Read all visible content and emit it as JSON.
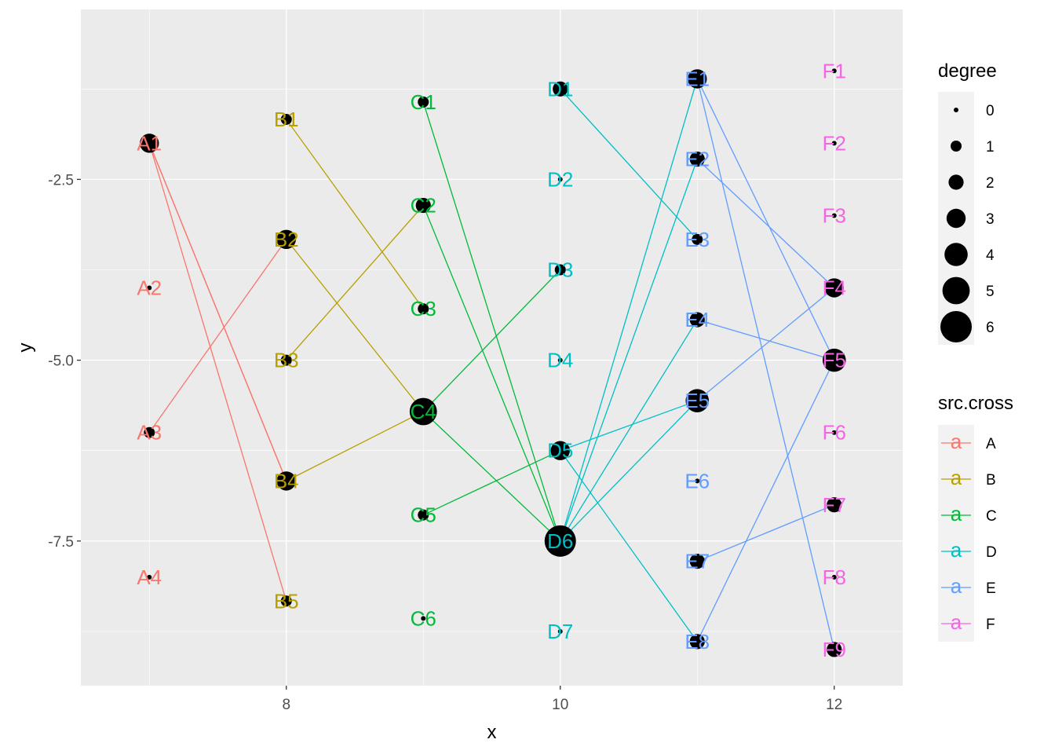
{
  "chart_data": {
    "type": "scatter",
    "xlabel": "x",
    "ylabel": "y",
    "xlim": [
      6.5,
      12.5
    ],
    "ylim": [
      -9.5,
      -0.15
    ],
    "xticks": [
      8,
      10,
      12
    ],
    "xtick_labels": [
      "8",
      "10",
      "12"
    ],
    "yticks": [
      -2.5,
      -5.0,
      -7.5
    ],
    "ytick_labels": [
      "-2.5",
      "-5.0",
      "-7.5"
    ],
    "grid": true,
    "legend_position": "right",
    "colors": {
      "A": "#F8766D",
      "B": "#B79F00",
      "C": "#00BA38",
      "D": "#00BFC4",
      "E": "#619CFF",
      "F": "#F564E3"
    },
    "legends": {
      "degree": {
        "title": "degree",
        "values": [
          0,
          1,
          2,
          3,
          4,
          5,
          6
        ],
        "labels": [
          "0",
          "1",
          "2",
          "3",
          "4",
          "5",
          "6"
        ]
      },
      "src_cross": {
        "title": "src.cross",
        "key_glyph": "a",
        "labels": [
          "A",
          "B",
          "C",
          "D",
          "E",
          "F"
        ]
      }
    },
    "nodes": [
      {
        "id": "A1",
        "group": "A",
        "x": 7,
        "y": -2.0,
        "degree": 3
      },
      {
        "id": "A2",
        "group": "A",
        "x": 7,
        "y": -4.0,
        "degree": 0
      },
      {
        "id": "A3",
        "group": "A",
        "x": 7,
        "y": -6.0,
        "degree": 1
      },
      {
        "id": "A4",
        "group": "A",
        "x": 7,
        "y": -8.0,
        "degree": 0
      },
      {
        "id": "B1",
        "group": "B",
        "x": 8,
        "y": -1.67,
        "degree": 1
      },
      {
        "id": "B2",
        "group": "B",
        "x": 8,
        "y": -3.33,
        "degree": 3
      },
      {
        "id": "B3",
        "group": "B",
        "x": 8,
        "y": -5.0,
        "degree": 1
      },
      {
        "id": "B4",
        "group": "B",
        "x": 8,
        "y": -6.67,
        "degree": 3
      },
      {
        "id": "B5",
        "group": "B",
        "x": 8,
        "y": -8.33,
        "degree": 1
      },
      {
        "id": "C1",
        "group": "C",
        "x": 9,
        "y": -1.43,
        "degree": 1
      },
      {
        "id": "C2",
        "group": "C",
        "x": 9,
        "y": -2.86,
        "degree": 2
      },
      {
        "id": "C3",
        "group": "C",
        "x": 9,
        "y": -4.29,
        "degree": 1
      },
      {
        "id": "C4",
        "group": "C",
        "x": 9,
        "y": -5.71,
        "degree": 5
      },
      {
        "id": "C5",
        "group": "C",
        "x": 9,
        "y": -7.14,
        "degree": 1
      },
      {
        "id": "C6",
        "group": "C",
        "x": 9,
        "y": -8.57,
        "degree": 0
      },
      {
        "id": "D1",
        "group": "D",
        "x": 10,
        "y": -1.25,
        "degree": 2
      },
      {
        "id": "D2",
        "group": "D",
        "x": 10,
        "y": -2.5,
        "degree": 0
      },
      {
        "id": "D3",
        "group": "D",
        "x": 10,
        "y": -3.75,
        "degree": 1
      },
      {
        "id": "D4",
        "group": "D",
        "x": 10,
        "y": -5.0,
        "degree": 0
      },
      {
        "id": "D5",
        "group": "D",
        "x": 10,
        "y": -6.25,
        "degree": 3
      },
      {
        "id": "D6",
        "group": "D",
        "x": 10,
        "y": -7.5,
        "degree": 6
      },
      {
        "id": "D7",
        "group": "D",
        "x": 10,
        "y": -8.75,
        "degree": 0
      },
      {
        "id": "E1",
        "group": "E",
        "x": 11,
        "y": -1.11,
        "degree": 3
      },
      {
        "id": "E2",
        "group": "E",
        "x": 11,
        "y": -2.22,
        "degree": 2
      },
      {
        "id": "E3",
        "group": "E",
        "x": 11,
        "y": -3.33,
        "degree": 1
      },
      {
        "id": "E4",
        "group": "E",
        "x": 11,
        "y": -4.44,
        "degree": 2
      },
      {
        "id": "E5",
        "group": "E",
        "x": 11,
        "y": -5.56,
        "degree": 4
      },
      {
        "id": "E6",
        "group": "E",
        "x": 11,
        "y": -6.67,
        "degree": 0
      },
      {
        "id": "E7",
        "group": "E",
        "x": 11,
        "y": -7.78,
        "degree": 2
      },
      {
        "id": "E8",
        "group": "E",
        "x": 11,
        "y": -8.89,
        "degree": 2
      },
      {
        "id": "F1",
        "group": "F",
        "x": 12,
        "y": -1.0,
        "degree": 0
      },
      {
        "id": "F2",
        "group": "F",
        "x": 12,
        "y": -2.0,
        "degree": 0
      },
      {
        "id": "F3",
        "group": "F",
        "x": 12,
        "y": -3.0,
        "degree": 0
      },
      {
        "id": "F4",
        "group": "F",
        "x": 12,
        "y": -4.0,
        "degree": 3
      },
      {
        "id": "F5",
        "group": "F",
        "x": 12,
        "y": -5.0,
        "degree": 4
      },
      {
        "id": "F6",
        "group": "F",
        "x": 12,
        "y": -6.0,
        "degree": 0
      },
      {
        "id": "F7",
        "group": "F",
        "x": 12,
        "y": -7.0,
        "degree": 2
      },
      {
        "id": "F8",
        "group": "F",
        "x": 12,
        "y": -8.0,
        "degree": 0
      },
      {
        "id": "F9",
        "group": "F",
        "x": 12,
        "y": -9.0,
        "degree": 2
      }
    ],
    "edges": [
      {
        "from": "A1",
        "to": "B4",
        "group": "A"
      },
      {
        "from": "A1",
        "to": "B4",
        "group": "A"
      },
      {
        "from": "A1",
        "to": "B5",
        "group": "A"
      },
      {
        "from": "A3",
        "to": "B2",
        "group": "A"
      },
      {
        "from": "B1",
        "to": "C3",
        "group": "B"
      },
      {
        "from": "B2",
        "to": "C4",
        "group": "B"
      },
      {
        "from": "B3",
        "to": "C2",
        "group": "B"
      },
      {
        "from": "B4",
        "to": "C4",
        "group": "B"
      },
      {
        "from": "C1",
        "to": "D6",
        "group": "C"
      },
      {
        "from": "C2",
        "to": "D6",
        "group": "C"
      },
      {
        "from": "C4",
        "to": "D3",
        "group": "C"
      },
      {
        "from": "C4",
        "to": "D6",
        "group": "C"
      },
      {
        "from": "C5",
        "to": "D5",
        "group": "C"
      },
      {
        "from": "D1",
        "to": "E3",
        "group": "D"
      },
      {
        "from": "D5",
        "to": "E5",
        "group": "D"
      },
      {
        "from": "D5",
        "to": "E8",
        "group": "D"
      },
      {
        "from": "D6",
        "to": "E1",
        "group": "D"
      },
      {
        "from": "D6",
        "to": "E2",
        "group": "D"
      },
      {
        "from": "D6",
        "to": "E4",
        "group": "D"
      },
      {
        "from": "D6",
        "to": "E5",
        "group": "D"
      },
      {
        "from": "E1",
        "to": "F5",
        "group": "E"
      },
      {
        "from": "E1",
        "to": "F9",
        "group": "E"
      },
      {
        "from": "E2",
        "to": "F4",
        "group": "E"
      },
      {
        "from": "E4",
        "to": "F5",
        "group": "E"
      },
      {
        "from": "E5",
        "to": "F4",
        "group": "E"
      },
      {
        "from": "E7",
        "to": "F7",
        "group": "E"
      },
      {
        "from": "E8",
        "to": "F5",
        "group": "E"
      }
    ]
  }
}
